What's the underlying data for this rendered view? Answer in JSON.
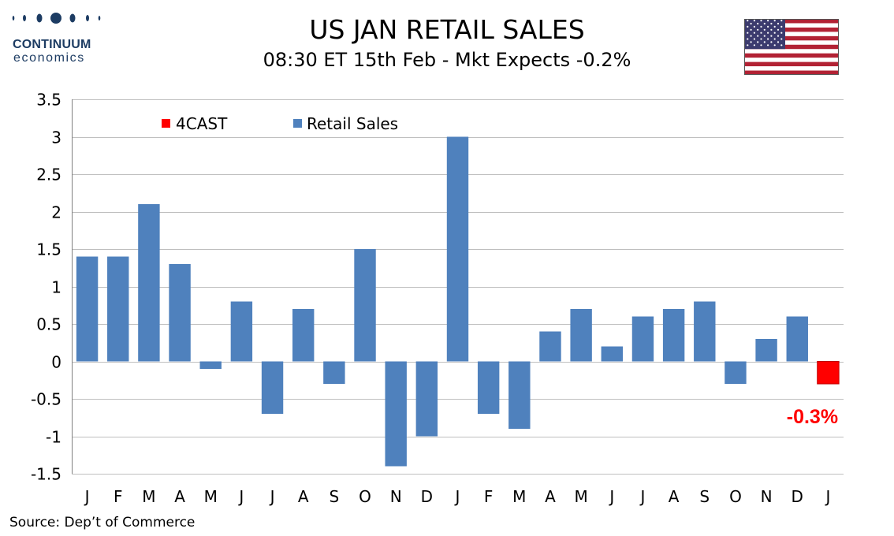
{
  "header": {
    "logo_name": "CONTINUUM",
    "logo_sub": "economics",
    "title": "US JAN RETAIL SALES",
    "subtitle": "08:30 ET 15th Feb - Mkt Expects -0.2%"
  },
  "footer": {
    "source": "Source: Dep’t of Commerce"
  },
  "colors": {
    "actual": "#4f81bd",
    "forecast": "#ff0000",
    "grid": "#bfbfbf",
    "logo": "#1d3c63"
  },
  "chart_data": {
    "type": "bar",
    "title": "US JAN RETAIL SALES",
    "subtitle": "08:30 ET 15th Feb - Mkt Expects -0.2%",
    "ylim": [
      -1.5,
      3.5
    ],
    "yticks": [
      "3.5",
      "3",
      "2.5",
      "2",
      "1.5",
      "1",
      "0.5",
      "0",
      "-0.5",
      "-1",
      "-1.5"
    ],
    "grid": true,
    "legend_position": "top-left",
    "categories": [
      "J",
      "F",
      "M",
      "A",
      "M",
      "J",
      "J",
      "A",
      "S",
      "O",
      "N",
      "D",
      "J",
      "F",
      "M",
      "A",
      "M",
      "J",
      "J",
      "A",
      "S",
      "O",
      "N",
      "D",
      "J"
    ],
    "series": [
      {
        "name": "Retail Sales",
        "color": "#4f81bd",
        "values": [
          1.4,
          1.4,
          2.1,
          1.3,
          -0.1,
          0.8,
          -0.7,
          0.7,
          -0.3,
          1.5,
          -1.4,
          -1.0,
          3.0,
          -0.7,
          -0.9,
          0.4,
          0.7,
          0.2,
          0.6,
          0.7,
          0.8,
          -0.3,
          0.3,
          0.6,
          null
        ]
      },
      {
        "name": "4CAST",
        "color": "#ff0000",
        "values": [
          null,
          null,
          null,
          null,
          null,
          null,
          null,
          null,
          null,
          null,
          null,
          null,
          null,
          null,
          null,
          null,
          null,
          null,
          null,
          null,
          null,
          null,
          null,
          null,
          -0.3
        ]
      }
    ],
    "annotations": [
      {
        "text": "-0.3%",
        "category_index": 24,
        "color": "#ff0000"
      }
    ]
  }
}
